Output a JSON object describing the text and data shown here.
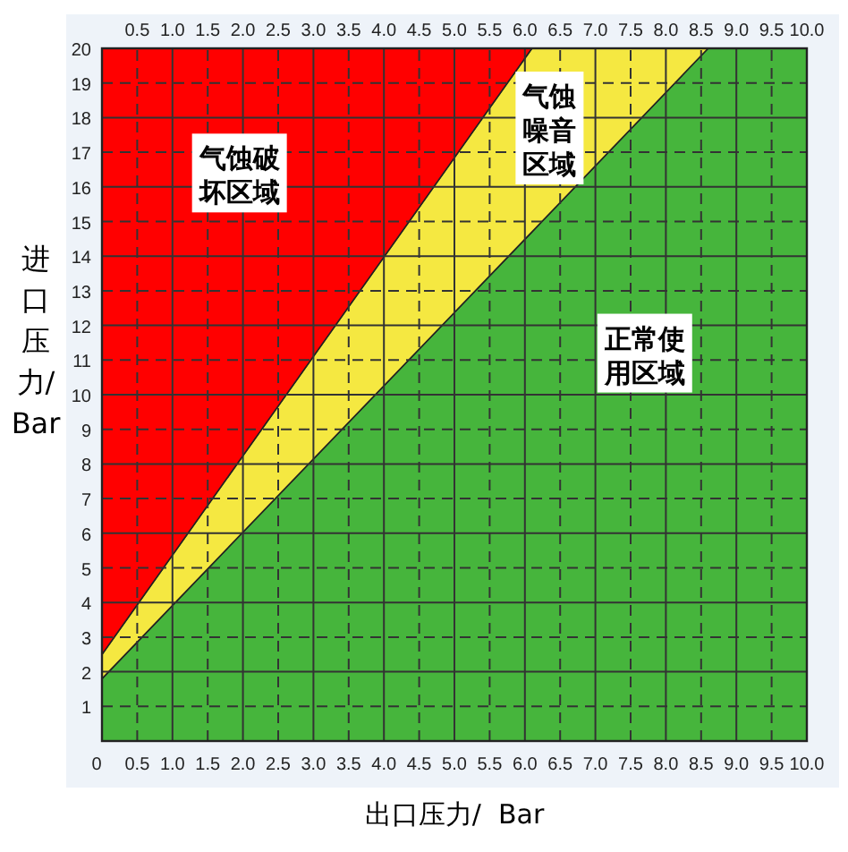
{
  "chart_data": {
    "type": "area",
    "xlabel": "出口压力/  Bar",
    "ylabel": "进口压力/ Bar",
    "stacked": true,
    "x": [
      0,
      6.1,
      8.6,
      10
    ],
    "series": [
      {
        "name": "正常使用区域",
        "color": "#46b53c",
        "values": [
          1.8,
          14.7,
          20,
          20
        ]
      },
      {
        "name": "气蚀噪音区域",
        "color": "#f5e841",
        "values": [
          0.7,
          5.3,
          0,
          0
        ]
      },
      {
        "name": "气蚀破坏区域",
        "color": "#ff0000",
        "values": [
          17.5,
          0,
          0,
          0
        ]
      }
    ],
    "xlim": [
      0,
      10
    ],
    "ylim": [
      0,
      20
    ],
    "xticks": [
      0,
      {
        "value": 0.5,
        "label": "0.5"
      },
      {
        "value": 1,
        "label": "1.0"
      },
      {
        "value": 1.5,
        "label": "1.5"
      },
      {
        "value": 2,
        "label": "2.0"
      },
      {
        "value": 2.5,
        "label": "2.5"
      },
      {
        "value": 3,
        "label": "3.0"
      },
      {
        "value": 3.5,
        "label": "3.5"
      },
      {
        "value": 4,
        "label": "4.0"
      },
      {
        "value": 4.5,
        "label": "4.5"
      },
      {
        "value": 5,
        "label": "5.0"
      },
      {
        "value": 5.5,
        "label": "5.5"
      },
      {
        "value": 6,
        "label": "6.0"
      },
      {
        "value": 6.5,
        "label": "6.5"
      },
      {
        "value": 7,
        "label": "7.0"
      },
      {
        "value": 7.5,
        "label": "7.5"
      },
      {
        "value": 8,
        "label": "8.0"
      },
      {
        "value": 8.5,
        "label": "8.5"
      },
      {
        "value": 9,
        "label": "9.0"
      },
      {
        "value": 9.5,
        "label": "9.5"
      },
      {
        "value": 10,
        "label": "10.0"
      }
    ],
    "x2lim": [
      0,
      10
    ],
    "x2ticks": [
      {
        "value": 0.5,
        "label": "0.5"
      },
      {
        "value": 1,
        "label": "1.0"
      },
      {
        "value": 1.5,
        "label": "1.5"
      },
      {
        "value": 2,
        "label": "2.0"
      },
      {
        "value": 2.5,
        "label": "2.5"
      },
      {
        "value": 3,
        "label": "3.0"
      },
      {
        "value": 3.5,
        "label": "3.5"
      },
      {
        "value": 4,
        "label": "4.0"
      },
      {
        "value": 4.5,
        "label": "4.5"
      },
      {
        "value": 5,
        "label": "5.0"
      },
      {
        "value": 5.5,
        "label": "5.5"
      },
      {
        "value": 6,
        "label": "6.0"
      },
      {
        "value": 6.5,
        "label": "6.5"
      },
      {
        "value": 7,
        "label": "7.0"
      },
      {
        "value": 7.5,
        "label": "7.5"
      },
      {
        "value": 8,
        "label": "8.0"
      },
      {
        "value": 8.5,
        "label": "8.5"
      },
      {
        "value": 9,
        "label": "9.0"
      },
      {
        "value": 9.5,
        "label": "9.5"
      },
      {
        "value": 10,
        "label": "10.0"
      }
    ],
    "yticks": [
      1,
      2,
      3,
      4,
      5,
      6,
      7,
      8,
      9,
      10,
      11,
      12,
      13,
      14,
      15,
      16,
      17,
      18,
      19,
      20
    ],
    "grid": true
  }
}
